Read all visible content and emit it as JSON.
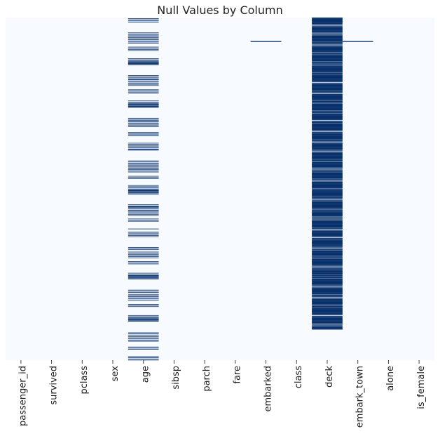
{
  "chart_data": {
    "type": "heatmap",
    "title": "Null Values by Column",
    "xlabel": "",
    "ylabel": "",
    "columns": [
      "passenger_id",
      "survived",
      "pclass",
      "sex",
      "age",
      "sibsp",
      "parch",
      "fare",
      "embarked",
      "class",
      "deck",
      "embark_town",
      "alone",
      "is_female"
    ],
    "row_count": 891,
    "colorbar": false,
    "colors": {
      "not_null": "#f7fbff",
      "null": "#08306b"
    },
    "null_counts": {
      "passenger_id": 0,
      "survived": 0,
      "pclass": 0,
      "sex": 0,
      "age": 177,
      "sibsp": 0,
      "parch": 0,
      "fare": 0,
      "embarked": 2,
      "class": 0,
      "deck": 688,
      "embark_town": 2,
      "alone": 0,
      "is_female": 0
    }
  }
}
